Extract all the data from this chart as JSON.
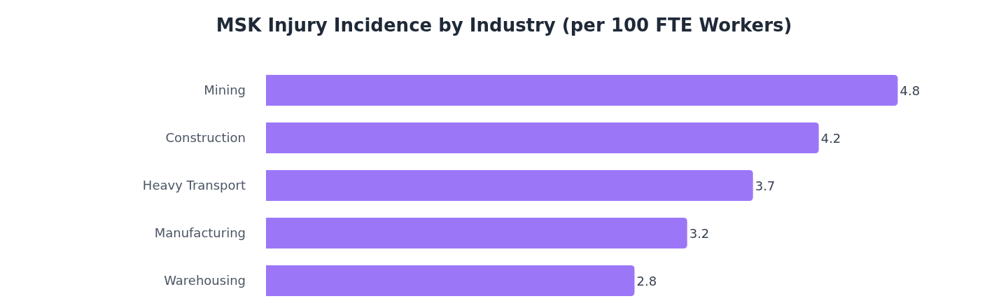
{
  "chart_data": {
    "type": "bar",
    "orientation": "horizontal",
    "title": "MSK Injury Incidence by Industry (per 100 FTE Workers)",
    "categories": [
      "Mining",
      "Construction",
      "Heavy Transport",
      "Manufacturing",
      "Warehousing"
    ],
    "values": [
      4.8,
      4.2,
      3.7,
      3.2,
      2.8
    ],
    "color": "#9b77f7",
    "data_labels": true
  }
}
